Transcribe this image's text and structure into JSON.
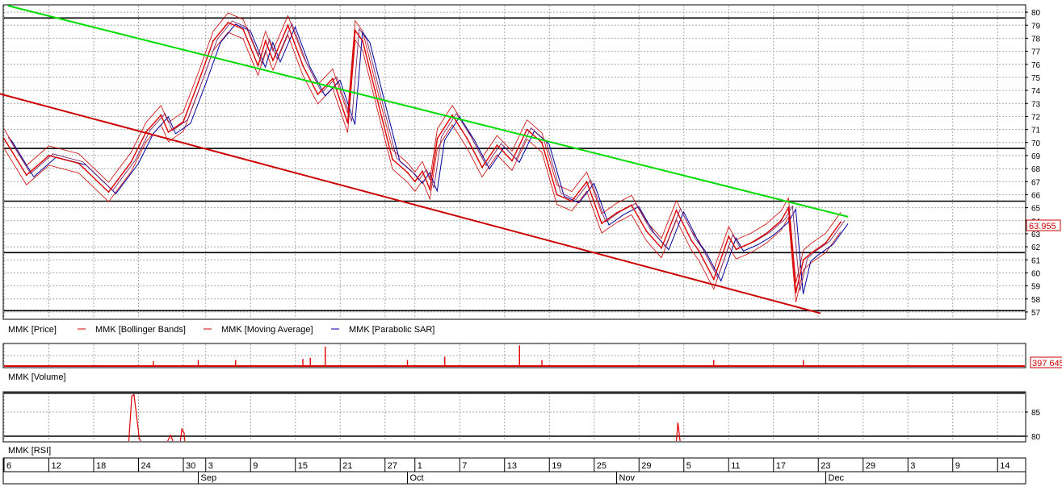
{
  "chart_data": [
    {
      "type": "line",
      "panel": "price",
      "ylim": [
        56.5,
        80.5
      ],
      "yticks": [
        80,
        79,
        78,
        77,
        76,
        75,
        74,
        73,
        72,
        71,
        70,
        69,
        68,
        67,
        66,
        65,
        64,
        63,
        62,
        61,
        60,
        59,
        58,
        57
      ],
      "last_price": "63.955",
      "grid": true,
      "legend": [
        {
          "label": "MMK [Price]",
          "color": "#000000",
          "marker": "none"
        },
        {
          "label": "MMK [Bollinger Bands]",
          "color": "#d00000",
          "marker": "line"
        },
        {
          "label": "MMK [Moving Average]",
          "color": "#d00000",
          "marker": "line"
        },
        {
          "label": "MMK [Parabolic SAR]",
          "color": "#0000a0",
          "marker": "line"
        }
      ],
      "series": [
        {
          "x": [
            0,
            3,
            6,
            10,
            14,
            17,
            19,
            21,
            22,
            24,
            26,
            28,
            30,
            32,
            34,
            35,
            36,
            38,
            40,
            42,
            44,
            46,
            47,
            48,
            50,
            52,
            54,
            55,
            56,
            57,
            58,
            60,
            62,
            64,
            66,
            68,
            70,
            72,
            74,
            76,
            78,
            80,
            82,
            84,
            86,
            88,
            90,
            92,
            93,
            95,
            97,
            98,
            100,
            102,
            104,
            105,
            106,
            107,
            108,
            110,
            112
          ],
          "values": [
            70.3,
            67.5,
            69.0,
            68.4,
            66.2,
            68.5,
            70.8,
            72.1,
            70.8,
            71.6,
            74.6,
            77.8,
            79.2,
            78.7,
            75.9,
            77.8,
            76.3,
            79.0,
            75.9,
            73.7,
            74.9,
            71.5,
            78.6,
            77.8,
            73.2,
            68.7,
            67.7,
            67.0,
            67.8,
            66.4,
            70.3,
            72.1,
            70.3,
            68.1,
            69.8,
            68.6,
            71.0,
            70.0,
            66.0,
            65.5,
            67.0,
            63.8,
            64.6,
            65.2,
            63.2,
            61.9,
            64.8,
            62.5,
            61.7,
            59.5,
            62.8,
            61.8,
            62.3,
            63.0,
            64.0,
            65.0,
            58.5,
            61.0,
            61.5,
            62.3,
            63.9
          ]
        }
      ],
      "trendlines": [
        {
          "points": [
            [
              0.5,
              80.5
            ],
            [
              113,
              64.3
            ]
          ],
          "color": "#00dd00"
        },
        {
          "points": [
            [
              -1,
              73.8
            ],
            [
              109.3,
              56.9
            ]
          ],
          "color": "#cc0000"
        }
      ],
      "hlines": [
        79.55,
        69.55,
        65.5,
        61.55,
        57.1
      ]
    },
    {
      "type": "bar",
      "panel": "volume",
      "legend": [
        {
          "label": "MMK [Volume]"
        }
      ],
      "last_value": "397 645",
      "spikes": [
        [
          20,
          0.25
        ],
        [
          26,
          0.3
        ],
        [
          31,
          0.3
        ],
        [
          40,
          0.35
        ],
        [
          41,
          0.4
        ],
        [
          43,
          0.9
        ],
        [
          54,
          0.3
        ],
        [
          59,
          0.45
        ],
        [
          69,
          0.95
        ],
        [
          72,
          0.3
        ],
        [
          95,
          0.3
        ],
        [
          107,
          0.3
        ]
      ]
    },
    {
      "type": "line",
      "panel": "rsi",
      "legend": [
        {
          "label": "MMK [RSI]"
        }
      ],
      "ylim": [
        79,
        89
      ],
      "yticks": [
        85,
        80
      ],
      "hlines": [
        88.9,
        80.0
      ],
      "segments": [
        [
          [
            16.7,
            79
          ],
          [
            17.1,
            88.3
          ],
          [
            17.4,
            88.6
          ],
          [
            17.7,
            84.8
          ],
          [
            18.1,
            79.6
          ],
          [
            18.3,
            79
          ]
        ],
        [
          [
            21.9,
            79
          ],
          [
            22.3,
            80.2
          ],
          [
            22.6,
            79
          ]
        ],
        [
          [
            23.6,
            79
          ],
          [
            23.8,
            81.5
          ],
          [
            24.1,
            80.7
          ],
          [
            24.2,
            79
          ]
        ],
        [
          [
            90.0,
            79
          ],
          [
            90.2,
            82.8
          ],
          [
            90.5,
            79
          ]
        ]
      ]
    }
  ],
  "x_axis": {
    "day_labels": [
      {
        "i": 0,
        "text": "6"
      },
      {
        "i": 6,
        "text": "12"
      },
      {
        "i": 12,
        "text": "18"
      },
      {
        "i": 18,
        "text": "24"
      },
      {
        "i": 24,
        "text": "30"
      },
      {
        "i": 27,
        "text": "3"
      },
      {
        "i": 33,
        "text": "9"
      },
      {
        "i": 39,
        "text": "15"
      },
      {
        "i": 45,
        "text": "21"
      },
      {
        "i": 51,
        "text": "27"
      },
      {
        "i": 55,
        "text": "1"
      },
      {
        "i": 61,
        "text": "7"
      },
      {
        "i": 67,
        "text": "13"
      },
      {
        "i": 73,
        "text": "19"
      },
      {
        "i": 79,
        "text": "25"
      },
      {
        "i": 85,
        "text": "29"
      },
      {
        "i": 91,
        "text": "5"
      },
      {
        "i": 97,
        "text": "11"
      },
      {
        "i": 103,
        "text": "17"
      },
      {
        "i": 109,
        "text": "23"
      },
      {
        "i": 115,
        "text": "29"
      },
      {
        "i": 121,
        "text": "3"
      },
      {
        "i": 127,
        "text": "9"
      },
      {
        "i": 133,
        "text": "14"
      }
    ],
    "month_labels": [
      {
        "i": 26,
        "text": "Sep"
      },
      {
        "i": 54,
        "text": "Oct"
      },
      {
        "i": 82,
        "text": "Nov"
      },
      {
        "i": 110,
        "text": "Dec"
      }
    ]
  }
}
